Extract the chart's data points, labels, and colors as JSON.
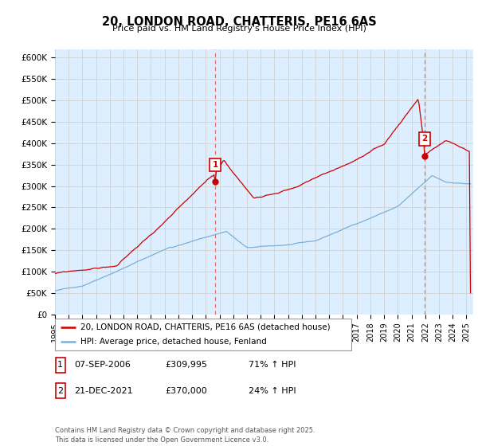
{
  "title": "20, LONDON ROAD, CHATTERIS, PE16 6AS",
  "subtitle": "Price paid vs. HM Land Registry's House Price Index (HPI)",
  "ylim": [
    0,
    620000
  ],
  "yticks": [
    0,
    50000,
    100000,
    150000,
    200000,
    250000,
    300000,
    350000,
    400000,
    450000,
    500000,
    550000,
    600000
  ],
  "ytick_labels": [
    "£0",
    "£50K",
    "£100K",
    "£150K",
    "£200K",
    "£250K",
    "£300K",
    "£350K",
    "£400K",
    "£450K",
    "£500K",
    "£550K",
    "£600K"
  ],
  "xlim_start": 1995.0,
  "xlim_end": 2025.5,
  "marker1_x": 2006.69,
  "marker1_y": 309995,
  "marker2_x": 2021.97,
  "marker2_y": 370000,
  "vline1_x": 2006.69,
  "vline2_x": 2021.97,
  "legend_line1": "20, LONDON ROAD, CHATTERIS, PE16 6AS (detached house)",
  "legend_line2": "HPI: Average price, detached house, Fenland",
  "table_row1": [
    "1",
    "07-SEP-2006",
    "£309,995",
    "71% ↑ HPI"
  ],
  "table_row2": [
    "2",
    "21-DEC-2021",
    "£370,000",
    "24% ↑ HPI"
  ],
  "footer": "Contains HM Land Registry data © Crown copyright and database right 2025.\nThis data is licensed under the Open Government Licence v3.0.",
  "red_color": "#cc0000",
  "blue_color": "#7bafd4",
  "vline_color": "#e87070",
  "bg_fill_color": "#ddeeff",
  "background_color": "#ffffff",
  "grid_color": "#cccccc"
}
